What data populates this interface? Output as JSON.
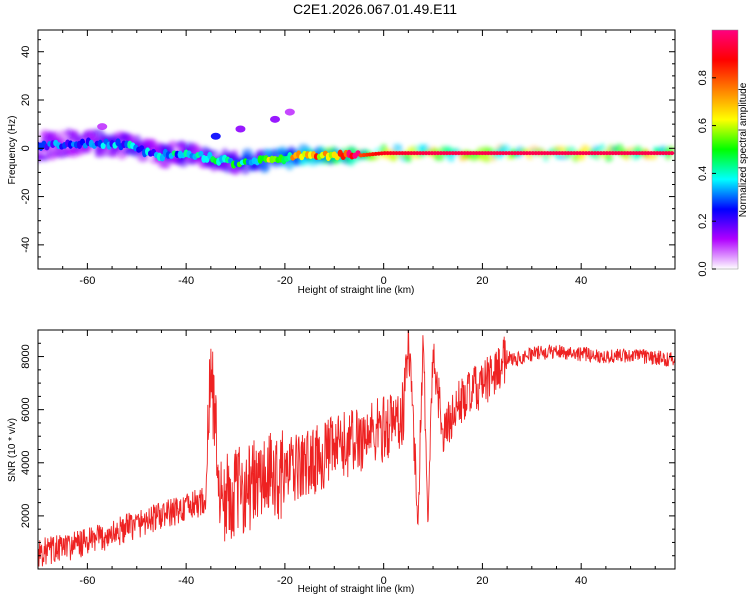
{
  "title": "C2E1.2026.067.01.49.E11",
  "chart_data": [
    {
      "type": "heatmap",
      "name": "spectrogram",
      "xlabel": "Height of straight line (km)",
      "ylabel": "Frequency (Hz)",
      "xlim": [
        -70,
        59
      ],
      "ylim": [
        -50,
        49
      ],
      "x_ticks": [
        -60,
        -40,
        -20,
        0,
        20,
        40
      ],
      "y_ticks": [
        -40,
        -20,
        0,
        20,
        40
      ],
      "colorbar": {
        "label": "Normalized spectral amplitude",
        "range": [
          0.0,
          1.0
        ],
        "ticks": [
          0.0,
          0.2,
          0.4,
          0.6,
          0.8
        ],
        "colormap": [
          "#ffffff",
          "#b000ff",
          "#0000ff",
          "#00ffff",
          "#00ff00",
          "#ffff00",
          "#ff8000",
          "#ff0000",
          "#ff0080"
        ]
      },
      "ridge": {
        "x": [
          -70,
          -60,
          -55,
          -50,
          -45,
          -40,
          -35,
          -30,
          -25,
          -20,
          -15,
          -10,
          -5,
          0,
          10,
          20,
          30,
          40,
          50,
          59
        ],
        "frequency": [
          1,
          2,
          2,
          0,
          -3,
          -2,
          -4,
          -6,
          -5,
          -4,
          -3,
          -3,
          -3,
          -2,
          -2,
          -2,
          -2,
          -2,
          -2,
          -2
        ],
        "amplitude": [
          0.25,
          0.25,
          0.3,
          0.3,
          0.3,
          0.35,
          0.35,
          0.4,
          0.45,
          0.55,
          0.65,
          0.75,
          0.8,
          0.9,
          0.95,
          0.95,
          0.95,
          0.95,
          0.95,
          0.95
        ]
      },
      "features": [
        {
          "x": -34,
          "frequency": 5,
          "amplitude": 0.25
        },
        {
          "x": -29,
          "frequency": 8,
          "amplitude": 0.15
        },
        {
          "x": -22,
          "frequency": 12,
          "amplitude": 0.15
        },
        {
          "x": -19,
          "frequency": 15,
          "amplitude": 0.1
        },
        {
          "x": -57,
          "frequency": 9,
          "amplitude": 0.1
        }
      ]
    },
    {
      "type": "line",
      "name": "snr",
      "xlabel": "Height of straight line (km)",
      "ylabel": "SNR (10 * v/v)",
      "xlim": [
        -70,
        59
      ],
      "ylim": [
        0,
        9000
      ],
      "x_ticks": [
        -60,
        -40,
        -20,
        0,
        20,
        40
      ],
      "y_ticks": [
        2000,
        4000,
        6000,
        8000
      ],
      "color": "#ee2222",
      "x": [
        -70,
        -65,
        -60,
        -55,
        -50,
        -45,
        -40,
        -36,
        -35,
        -33,
        -30,
        -25,
        -20,
        -15,
        -10,
        -5,
        0,
        4,
        5,
        7,
        8,
        9,
        10,
        12,
        15,
        18,
        20,
        23,
        25,
        27,
        30,
        35,
        40,
        45,
        50,
        55,
        59
      ],
      "values": [
        600,
        800,
        1000,
        1300,
        1700,
        2000,
        2300,
        2600,
        7800,
        2500,
        2900,
        3300,
        3600,
        4000,
        4500,
        4900,
        5300,
        5800,
        8800,
        2000,
        9000,
        1500,
        8400,
        5000,
        6200,
        6700,
        6900,
        7500,
        8000,
        7900,
        8100,
        8200,
        8100,
        8000,
        8050,
        7950,
        7900
      ]
    }
  ]
}
